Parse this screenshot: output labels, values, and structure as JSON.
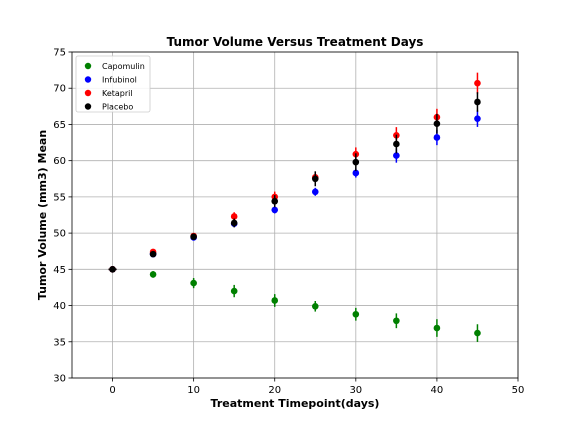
{
  "chart_data": {
    "type": "scatter",
    "title": "Tumor Volume Versus Treatment Days",
    "xlabel": "Treatment Timepoint(days)",
    "ylabel": "Tumor Volume (mm3) Mean",
    "xlim": [
      -5,
      50
    ],
    "ylim": [
      30,
      75
    ],
    "xticks": [
      0,
      10,
      20,
      30,
      40,
      50
    ],
    "yticks": [
      30,
      35,
      40,
      45,
      50,
      55,
      60,
      65,
      70,
      75
    ],
    "grid": true,
    "legend_position": "top-left",
    "x": [
      0,
      5,
      10,
      15,
      20,
      25,
      30,
      35,
      40,
      45
    ],
    "series": [
      {
        "name": "Capomulin",
        "color": "#008000",
        "values": [
          45.0,
          44.3,
          43.1,
          42.0,
          40.7,
          39.9,
          38.8,
          37.9,
          36.9,
          36.2
        ],
        "errors": [
          0.0,
          0.45,
          0.7,
          0.85,
          0.88,
          0.73,
          0.88,
          1.02,
          1.22,
          1.22
        ]
      },
      {
        "name": "Infubinol",
        "color": "#0000ff",
        "values": [
          45.0,
          47.1,
          49.4,
          51.3,
          53.2,
          55.7,
          58.3,
          60.7,
          63.2,
          65.8
        ],
        "errors": [
          0.0,
          0.24,
          0.28,
          0.36,
          0.48,
          0.55,
          0.63,
          0.98,
          1.06,
          1.14
        ]
      },
      {
        "name": "Ketapril",
        "color": "#ff0000",
        "values": [
          45.0,
          47.4,
          49.6,
          52.3,
          55.0,
          57.7,
          60.9,
          63.5,
          66.0,
          70.7
        ],
        "errors": [
          0.0,
          0.26,
          0.36,
          0.58,
          0.73,
          0.76,
          0.93,
          1.13,
          1.16,
          1.45
        ]
      },
      {
        "name": "Placebo",
        "color": "#000000",
        "values": [
          45.0,
          47.1,
          49.5,
          51.4,
          54.4,
          57.5,
          59.8,
          62.3,
          65.1,
          68.1
        ],
        "errors": [
          0.0,
          0.22,
          0.4,
          0.61,
          0.84,
          1.03,
          1.22,
          1.29,
          1.37,
          1.35
        ]
      }
    ]
  }
}
